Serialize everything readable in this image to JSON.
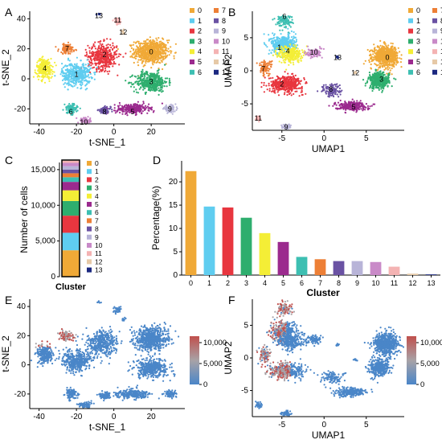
{
  "palette": [
    "#f0a937",
    "#5fcdf0",
    "#e8363f",
    "#2eae6e",
    "#f4ee36",
    "#9b2a8e",
    "#3dbfb2",
    "#ed7f36",
    "#6a52a3",
    "#b8b4d8",
    "#c98ac8",
    "#f4b3b3",
    "#e6c9a7",
    "#1b2880"
  ],
  "panels": {
    "A": {
      "label": "A"
    },
    "B": {
      "label": "B"
    },
    "C": {
      "label": "C"
    },
    "D": {
      "label": "D"
    },
    "E": {
      "label": "E"
    },
    "F": {
      "label": "F"
    }
  },
  "cluster_legend": [
    "0",
    "1",
    "2",
    "3",
    "4",
    "5",
    "6",
    "7",
    "8",
    "9",
    "10",
    "11",
    "12",
    "13"
  ],
  "feature_legend": {
    "ticks": [
      "10,000",
      "5,000",
      "0"
    ],
    "colors": {
      "low": "#4a86c8",
      "mid": "#a8a2a6",
      "high": "#c0504d"
    }
  },
  "chart_data": [
    {
      "panel": "A",
      "type": "scatter",
      "xlabel": "t-SNE_1",
      "ylabel": "t-SNE_2",
      "xticks": [
        "-40",
        "-20",
        "0",
        "20"
      ],
      "yticks": [
        "40",
        "20",
        "0",
        "-20"
      ],
      "xlim": [
        -45,
        38
      ],
      "ylim": [
        -30,
        45
      ],
      "cluster_labels": [
        {
          "label": "0",
          "x": 20,
          "y": 18
        },
        {
          "label": "1",
          "x": -20,
          "y": 3
        },
        {
          "label": "2",
          "x": -5,
          "y": 16
        },
        {
          "label": "3",
          "x": 20,
          "y": -2
        },
        {
          "label": "4",
          "x": -37,
          "y": 7
        },
        {
          "label": "5",
          "x": 10,
          "y": -22
        },
        {
          "label": "6",
          "x": -23,
          "y": -22
        },
        {
          "label": "7",
          "x": -25,
          "y": 20
        },
        {
          "label": "8",
          "x": -5,
          "y": -22
        },
        {
          "label": "9",
          "x": 30,
          "y": -20
        },
        {
          "label": "10",
          "x": -16,
          "y": -29
        },
        {
          "label": "11",
          "x": 2,
          "y": 39
        },
        {
          "label": "12",
          "x": 5,
          "y": 31
        },
        {
          "label": "13",
          "x": -8,
          "y": 42
        }
      ]
    },
    {
      "panel": "B",
      "type": "scatter",
      "xlabel": "UMAP1",
      "ylabel": "UMAP2",
      "xticks": [
        "-5",
        "0",
        "5"
      ],
      "yticks": [
        "5",
        "0",
        "-5"
      ],
      "xlim": [
        -8.5,
        9.5
      ],
      "ylim": [
        -9,
        9
      ],
      "cluster_labels": [
        {
          "label": "0",
          "x": 7.5,
          "y": 2
        },
        {
          "label": "1",
          "x": -5.3,
          "y": 3.5
        },
        {
          "label": "2",
          "x": -5,
          "y": -2
        },
        {
          "label": "3",
          "x": 6.8,
          "y": -1.3
        },
        {
          "label": "4",
          "x": -4.3,
          "y": 3
        },
        {
          "label": "5",
          "x": 3.5,
          "y": -5.5
        },
        {
          "label": "6",
          "x": -4.7,
          "y": 8.2
        },
        {
          "label": "7",
          "x": -7.2,
          "y": 0.3
        },
        {
          "label": "8",
          "x": 0.8,
          "y": -2.8
        },
        {
          "label": "9",
          "x": -4.5,
          "y": -8.5
        },
        {
          "label": "10",
          "x": -1.2,
          "y": 2.8
        },
        {
          "label": "11",
          "x": -7.8,
          "y": -7.2
        },
        {
          "label": "12",
          "x": 3.7,
          "y": -0.3
        },
        {
          "label": "13",
          "x": 1.6,
          "y": 2
        }
      ]
    },
    {
      "panel": "C",
      "type": "bar",
      "stacked": true,
      "xlabel": "Cluster",
      "ylabel": "Number of cells",
      "yticks": [
        "15,000",
        "10,000",
        "5,000",
        "0"
      ],
      "ylim": [
        0,
        16000
      ],
      "series": [
        {
          "name": "0",
          "values": [
            3700
          ]
        },
        {
          "name": "1",
          "values": [
            2450
          ]
        },
        {
          "name": "2",
          "values": [
            2400
          ]
        },
        {
          "name": "3",
          "values": [
            2050
          ]
        },
        {
          "name": "4",
          "values": [
            1500
          ]
        },
        {
          "name": "5",
          "values": [
            1180
          ]
        },
        {
          "name": "6",
          "values": [
            650
          ]
        },
        {
          "name": "7",
          "values": [
            560
          ]
        },
        {
          "name": "8",
          "values": [
            500
          ]
        },
        {
          "name": "9",
          "values": [
            490
          ]
        },
        {
          "name": "10",
          "values": [
            470
          ]
        },
        {
          "name": "11",
          "values": [
            300
          ]
        },
        {
          "name": "12",
          "values": [
            60
          ]
        },
        {
          "name": "13",
          "values": [
            30
          ]
        }
      ]
    },
    {
      "panel": "D",
      "type": "bar",
      "xlabel": "Cluster",
      "ylabel": "Percentage(%)",
      "categories": [
        "0",
        "1",
        "2",
        "3",
        "4",
        "5",
        "6",
        "7",
        "8",
        "9",
        "10",
        "11",
        "12",
        "13"
      ],
      "values": [
        22.3,
        14.7,
        14.5,
        12.3,
        9.0,
        7.1,
        3.9,
        3.4,
        3.0,
        3.0,
        2.8,
        1.8,
        0.3,
        0.15
      ],
      "yticks": [
        "20",
        "15",
        "10",
        "5",
        "0"
      ],
      "ylim": [
        0,
        24.5
      ]
    },
    {
      "panel": "E",
      "type": "scatter",
      "xlabel": "t-SNE_1",
      "ylabel": "t-SNE_2",
      "xticks": [
        "-40",
        "-20",
        "0",
        "20"
      ],
      "yticks": [
        "40",
        "20",
        "0",
        "-20"
      ],
      "xlim": [
        -45,
        38
      ],
      "ylim": [
        -30,
        45
      ]
    },
    {
      "panel": "F",
      "type": "scatter",
      "xlabel": "UMAP1",
      "ylabel": "UMAP2",
      "xticks": [
        "-5",
        "0",
        "5"
      ],
      "yticks": [
        "5",
        "0",
        "-5"
      ],
      "xlim": [
        -8.5,
        9.5
      ],
      "ylim": [
        -9,
        9
      ]
    }
  ]
}
